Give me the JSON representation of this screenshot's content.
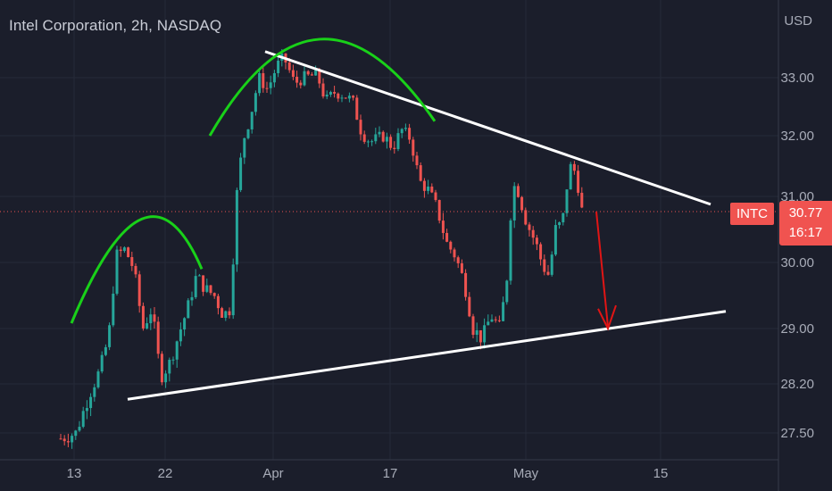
{
  "header": {
    "title": "Intel Corporation, 2h, NASDAQ"
  },
  "price_axis": {
    "currency": "USD"
  },
  "last_price": {
    "symbol": "INTC",
    "price": "30.77",
    "countdown": "16:17"
  },
  "colors": {
    "background": "#1b1e2b",
    "up": "#26a69a",
    "down": "#ef5350",
    "trendline": "#ffffff",
    "arc": "#19d119",
    "arrow": "#e01515",
    "grid": "#262a38"
  },
  "chart_data": {
    "type": "candlestick",
    "x_ticks": [
      "13",
      "22",
      "Apr",
      "17",
      "May",
      "15"
    ],
    "y_ticks": [
      "27.50",
      "28.20",
      "29.00",
      "30.00",
      "31.00",
      "32.00",
      "33.00"
    ],
    "ylim": [
      27.3,
      33.8
    ],
    "ylabel": "USD",
    "grid": true,
    "last_price": 30.77,
    "annotations": [
      {
        "type": "trendline",
        "label": "descending resistance",
        "from": [
          "Apr",
          33.45
        ],
        "to": [
          "after 15",
          30.9
        ]
      },
      {
        "type": "trendline",
        "label": "ascending support",
        "from": [
          "before 22",
          27.98
        ],
        "to": [
          "after 15",
          29.25
        ]
      },
      {
        "type": "arc",
        "label": "left shoulder",
        "peak": 30.65
      },
      {
        "type": "arc",
        "label": "head",
        "peak": 33.55
      },
      {
        "type": "arrow",
        "label": "projected move",
        "from": 30.77,
        "to": 28.95
      }
    ]
  }
}
